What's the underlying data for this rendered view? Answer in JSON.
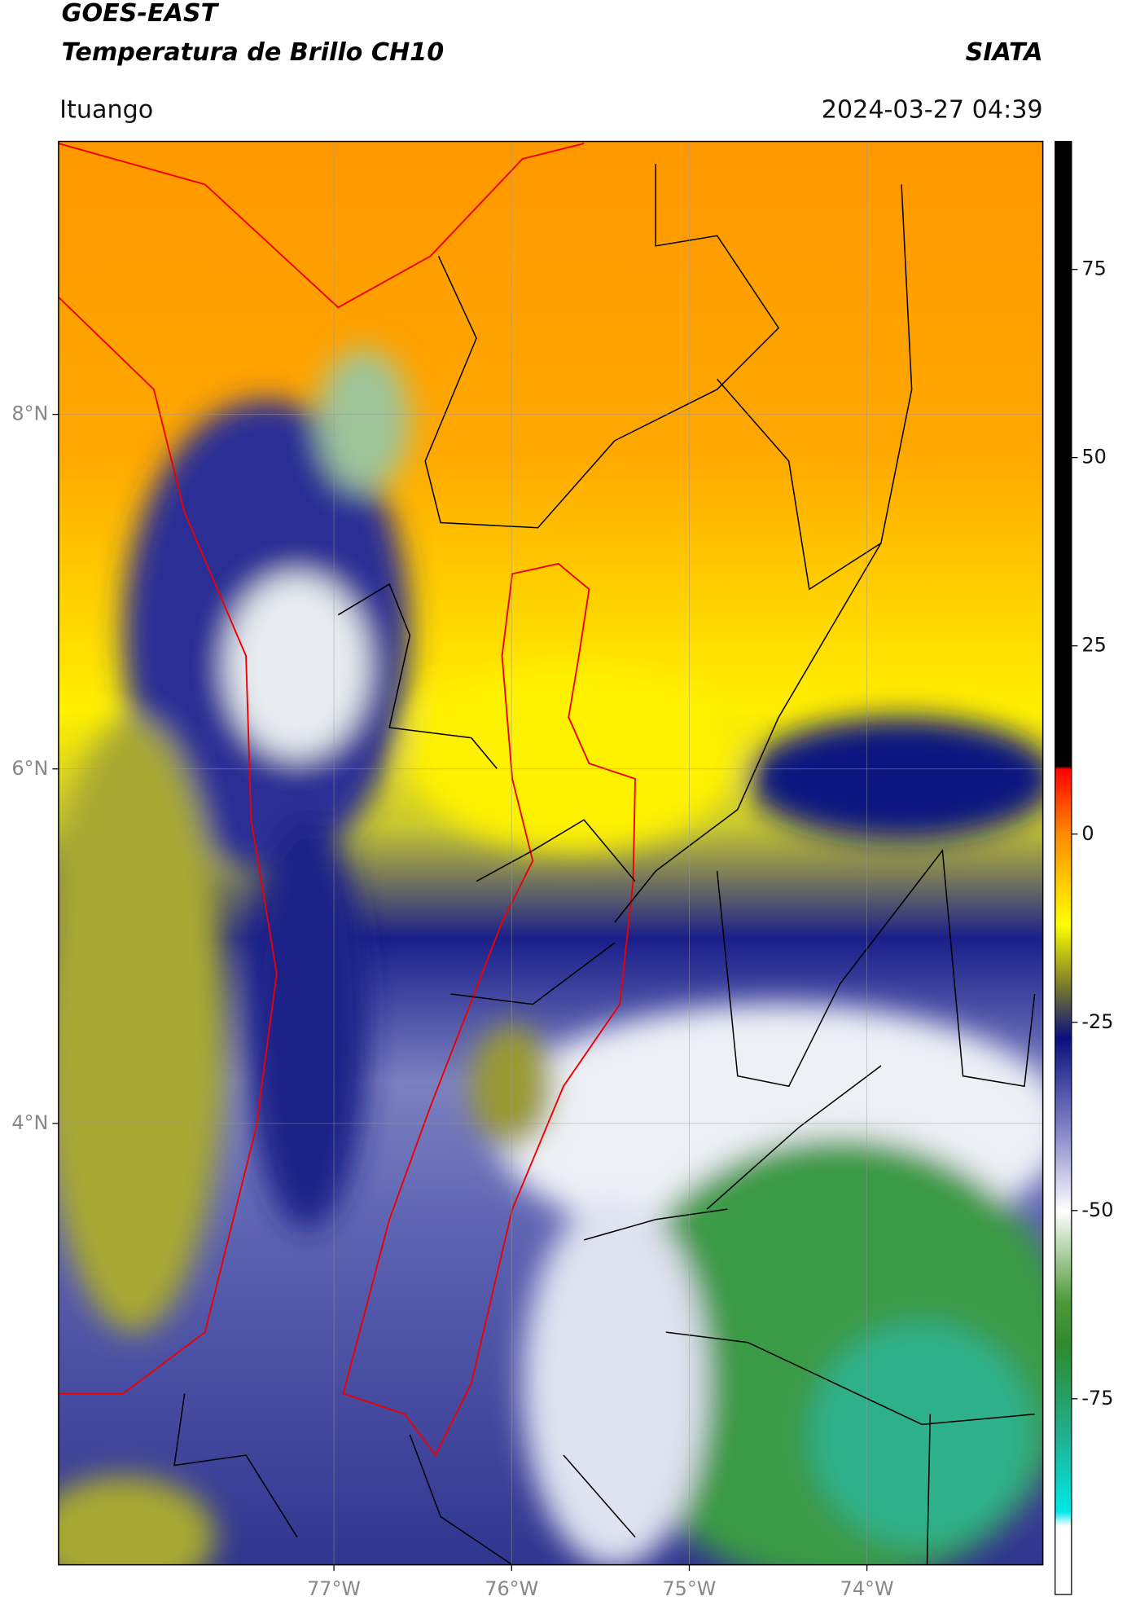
{
  "header": {
    "title": "GOES-EAST",
    "subtitle": "Temperatura de Brillo CH10",
    "brand": "SIATA",
    "region": "Ituango",
    "datetime": "2024-03-27 04:39"
  },
  "map": {
    "xlim": [
      -78.55,
      -73.01
    ],
    "ylim": [
      1.51,
      9.54
    ],
    "xticks": [
      {
        "value": -77,
        "label": "77°W"
      },
      {
        "value": -76,
        "label": "76°W"
      },
      {
        "value": -75,
        "label": "75°W"
      },
      {
        "value": -74,
        "label": "74°W"
      }
    ],
    "yticks": [
      {
        "value": 8,
        "label": "8°N"
      },
      {
        "value": 6,
        "label": "6°N"
      },
      {
        "value": 4,
        "label": "4°N"
      }
    ],
    "grid": true
  },
  "colorbar": {
    "lim": [
      -101,
      92
    ],
    "ticks": [
      75,
      50,
      25,
      0,
      -25,
      -50,
      -75
    ]
  }
}
